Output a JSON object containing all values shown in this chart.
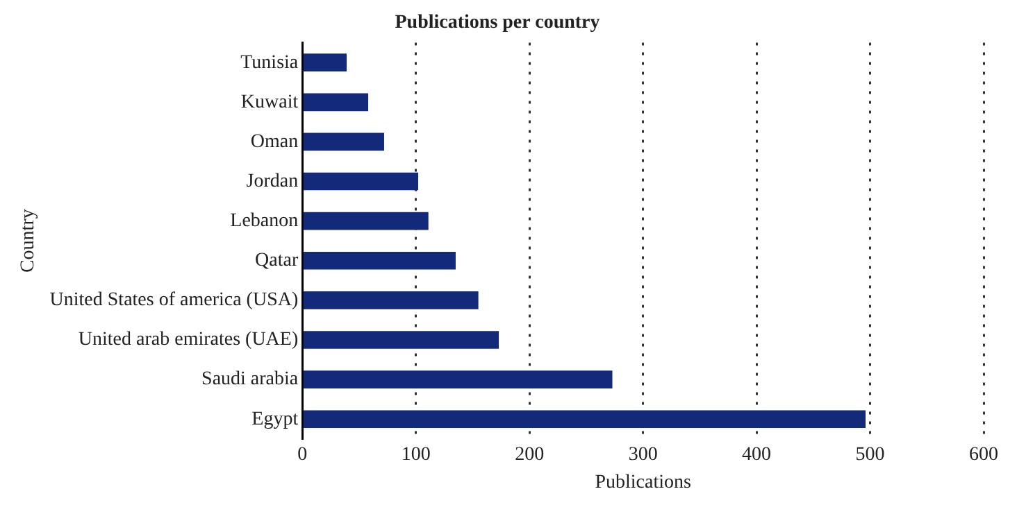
{
  "chart_data": {
    "type": "bar",
    "orientation": "horizontal",
    "title": "Publications per country",
    "xlabel": "Publications",
    "ylabel": "Country",
    "categories": [
      "Tunisia",
      "Kuwait",
      "Oman",
      "Jordan",
      "Lebanon",
      "Qatar",
      "United States of america (USA)",
      "United arab emirates (UAE)",
      "Saudi arabia",
      "Egypt"
    ],
    "values": [
      39,
      58,
      72,
      102,
      111,
      135,
      155,
      173,
      273,
      496
    ],
    "color": "#13297a",
    "xlim": [
      0,
      600
    ],
    "xticks": [
      0,
      100,
      200,
      300,
      400,
      500,
      600
    ],
    "grid": "x",
    "legend": false
  }
}
